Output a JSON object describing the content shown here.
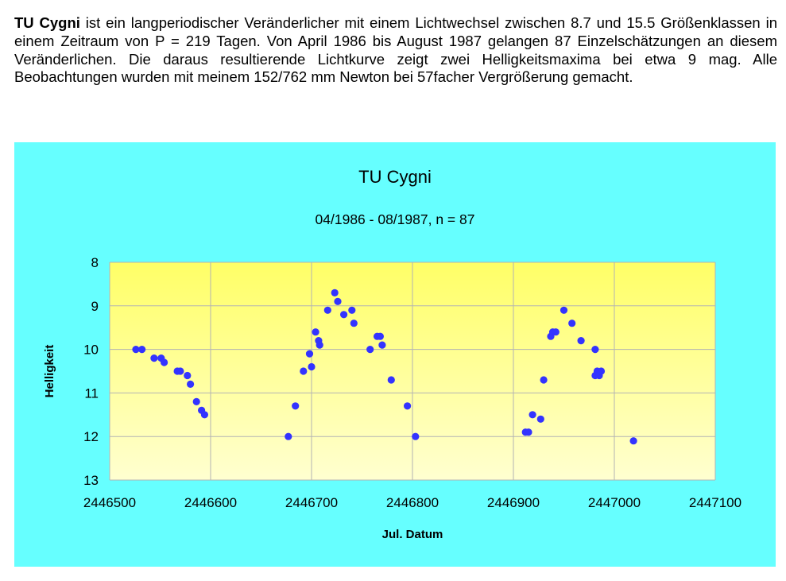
{
  "intro": {
    "bold_name": "TU Cygni",
    "text": " ist ein langperiodischer Veränderlicher mit einem Lichtwechsel zwischen 8.7 und 15.5 Größenklassen in einem Zeitraum von P = 219 Tagen. Von April 1986 bis August 1987 gelangen 87 Einzelschätzungen an diesem Veränderlichen. Die daraus resultierende Lichtkurve zeigt zwei Helligkeitsmaxima bei etwa 9 mag. Alle Beobachtungen wurden mit meinem 152/762 mm  Newton bei 57facher Vergrößerung gemacht."
  },
  "colors": {
    "panel_background": "#66ffff",
    "plot_gradient_top": "#ffff66",
    "plot_gradient_bottom": "#ffffd0",
    "points": "#3333ff",
    "grid": "#b3b3b3"
  },
  "chart_data": {
    "type": "scatter",
    "title": "TU Cygni",
    "subtitle": "04/1986 - 08/1987, n = 87",
    "xlabel": "Jul. Datum",
    "ylabel": "Helligkeit",
    "xlim": [
      2446500,
      2447100
    ],
    "ylim": [
      8,
      13
    ],
    "y_inverted": true,
    "x_ticks": [
      "2446500",
      "2446600",
      "2446700",
      "2446800",
      "2446900",
      "2447000",
      "2447100"
    ],
    "y_ticks": [
      "8",
      "9",
      "10",
      "11",
      "12",
      "13"
    ],
    "grid": true,
    "points": [
      [
        2446526,
        10.0
      ],
      [
        2446532,
        10.0
      ],
      [
        2446544,
        10.2
      ],
      [
        2446551,
        10.2
      ],
      [
        2446554,
        10.3
      ],
      [
        2446567,
        10.5
      ],
      [
        2446570,
        10.5
      ],
      [
        2446577,
        10.6
      ],
      [
        2446580,
        10.8
      ],
      [
        2446586,
        11.2
      ],
      [
        2446591,
        11.4
      ],
      [
        2446594,
        11.5
      ],
      [
        2446677,
        12.0
      ],
      [
        2446684,
        11.3
      ],
      [
        2446692,
        10.5
      ],
      [
        2446698,
        10.1
      ],
      [
        2446700,
        10.4
      ],
      [
        2446704,
        9.6
      ],
      [
        2446707,
        9.8
      ],
      [
        2446708,
        9.9
      ],
      [
        2446716,
        9.1
      ],
      [
        2446723,
        8.7
      ],
      [
        2446726,
        8.9
      ],
      [
        2446732,
        9.2
      ],
      [
        2446740,
        9.1
      ],
      [
        2446742,
        9.4
      ],
      [
        2446758,
        10.0
      ],
      [
        2446765,
        9.7
      ],
      [
        2446768,
        9.7
      ],
      [
        2446770,
        9.9
      ],
      [
        2446779,
        10.7
      ],
      [
        2446795,
        11.3
      ],
      [
        2446803,
        12.0
      ],
      [
        2446912,
        11.9
      ],
      [
        2446915,
        11.9
      ],
      [
        2446919,
        11.5
      ],
      [
        2446927,
        11.6
      ],
      [
        2446930,
        10.7
      ],
      [
        2446937,
        9.7
      ],
      [
        2446939,
        9.6
      ],
      [
        2446942,
        9.6
      ],
      [
        2446950,
        9.1
      ],
      [
        2446958,
        9.4
      ],
      [
        2446967,
        9.8
      ],
      [
        2446981,
        10.0
      ],
      [
        2446981,
        10.6
      ],
      [
        2446983,
        10.5
      ],
      [
        2446985,
        10.6
      ],
      [
        2446987,
        10.5
      ],
      [
        2447019,
        12.1
      ]
    ]
  }
}
